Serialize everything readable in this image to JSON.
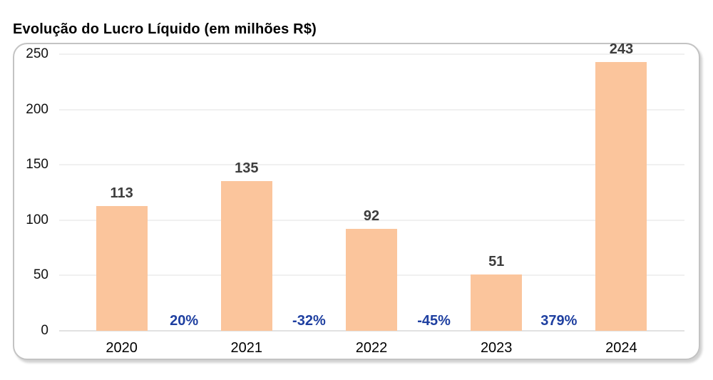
{
  "chart_data": {
    "type": "bar",
    "title": "Evolução do Lucro Líquido (em milhões R$)",
    "categories": [
      "2020",
      "2021",
      "2022",
      "2023",
      "2024"
    ],
    "values": [
      113,
      135,
      92,
      51,
      243
    ],
    "pct_change_labels": [
      "20%",
      "-32%",
      "-45%",
      "379%"
    ],
    "xlabel": "",
    "ylabel": "",
    "ylim": [
      0,
      250
    ],
    "yticks": [
      0,
      50,
      100,
      150,
      200,
      250
    ],
    "grid": true,
    "legend_position": "none",
    "colors": {
      "bar_fill": "#FBC59C",
      "value_label": "#3D3D3D",
      "pct_label": "#1E3FA0",
      "axis_tick_label": "#111111",
      "gridline": "#F0F0F0",
      "baseline": "#E2E2E2",
      "panel_border": "#C3C3C3",
      "background": "#FFFFFF"
    }
  }
}
